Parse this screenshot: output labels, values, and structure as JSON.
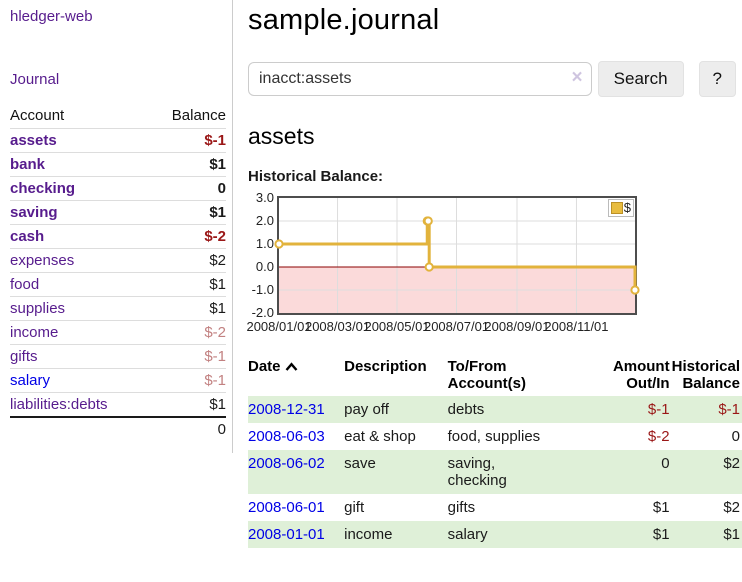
{
  "sidebar": {
    "brand": "hledger-web",
    "journal_link": "Journal",
    "accounts_table": {
      "headers": {
        "account": "Account",
        "balance": "Balance"
      },
      "rows": [
        {
          "name": "assets",
          "name_class": "d0 bold",
          "balance": "$-1",
          "balance_class": "neg bold"
        },
        {
          "name": "bank",
          "name_class": "d1 bold",
          "balance": "$1",
          "balance_class": "bold"
        },
        {
          "name": "checking",
          "name_class": "d2 bold",
          "balance": "0",
          "balance_class": "bold"
        },
        {
          "name": "saving",
          "name_class": "d2 bold",
          "balance": "$1",
          "balance_class": "bold"
        },
        {
          "name": "cash",
          "name_class": "d1 bold",
          "balance": "$-2",
          "balance_class": "neg bold"
        },
        {
          "name": "expenses",
          "name_class": "d0",
          "balance": "$2",
          "balance_class": ""
        },
        {
          "name": "food",
          "name_class": "d1",
          "balance": "$1",
          "balance_class": ""
        },
        {
          "name": "supplies",
          "name_class": "d1",
          "balance": "$1",
          "balance_class": ""
        },
        {
          "name": "income",
          "name_class": "d0",
          "balance": "$-2",
          "balance_class": "dimneg"
        },
        {
          "name": "gifts",
          "name_class": "d1",
          "balance": "$-1",
          "balance_class": "dimneg"
        },
        {
          "name": "salary",
          "name_class": "d1",
          "link_class": "blue",
          "balance": "$-1",
          "balance_class": "dimneg"
        },
        {
          "name": "liabilities:debts",
          "name_class": "d0",
          "balance": "$1",
          "balance_class": ""
        }
      ],
      "total": "0"
    }
  },
  "header": {
    "title": "sample.journal"
  },
  "search": {
    "value": "inacct:assets",
    "clear_icon": "×",
    "button_label": "Search",
    "help_label": "?"
  },
  "main": {
    "account_heading": "assets",
    "chart_label": "Historical Balance:"
  },
  "chart_data": {
    "type": "line",
    "step": true,
    "title": "Historical Balance:",
    "series": [
      {
        "name": "$",
        "dates": [
          "2008-01-01",
          "2008-06-01",
          "2008-06-02",
          "2008-06-03",
          "2008-12-31"
        ],
        "values": [
          1,
          2,
          2,
          0,
          -1
        ],
        "points": [
          [
            0,
            1
          ],
          [
            152,
            2
          ],
          [
            153,
            2
          ],
          [
            154,
            0
          ],
          [
            365,
            -1
          ]
        ]
      }
    ],
    "xlim": [
      0,
      365
    ],
    "ylim": [
      -2,
      3
    ],
    "y_ticks": [
      3,
      2,
      1,
      0,
      -1,
      -2
    ],
    "x_ticks": [
      0,
      60,
      121,
      182,
      244,
      305
    ],
    "x_tick_labels": [
      "2008/01/01",
      "2008/03/01",
      "2008/05/01",
      "2008/07/01",
      "2008/09/01",
      "2008/11/01"
    ],
    "grid": true,
    "legend_position": "top-right",
    "legend_label": "$",
    "series_color": "#e2b33c",
    "marker_fill": "#ffffff",
    "negative_region_fill": "#fbdada",
    "zero_line_color": "#8b0000",
    "grid_color": "#dddddd"
  },
  "transactions": {
    "headers": {
      "date": "Date",
      "description": "Description",
      "accounts": "To/From\nAccount(s)",
      "amount": "Amount\nOut/In",
      "balance": "Historical\nBalance"
    },
    "rows": [
      {
        "date": "2008-12-31",
        "description": "pay off",
        "accounts": "debts",
        "amount": "$-1",
        "amount_class": "neg",
        "balance": "$-1",
        "balance_class": "neg"
      },
      {
        "date": "2008-06-03",
        "description": "eat & shop",
        "accounts": "food, supplies",
        "amount": "$-2",
        "amount_class": "neg",
        "balance": "0",
        "balance_class": ""
      },
      {
        "date": "2008-06-02",
        "description": "save",
        "accounts": "saving,\nchecking",
        "amount": "0",
        "amount_class": "",
        "balance": "$2",
        "balance_class": ""
      },
      {
        "date": "2008-06-01",
        "description": "gift",
        "accounts": "gifts",
        "amount": "$1",
        "amount_class": "",
        "balance": "$2",
        "balance_class": ""
      },
      {
        "date": "2008-01-01",
        "description": "income",
        "accounts": "salary",
        "amount": "$1",
        "amount_class": "",
        "balance": "$1",
        "balance_class": ""
      }
    ]
  }
}
